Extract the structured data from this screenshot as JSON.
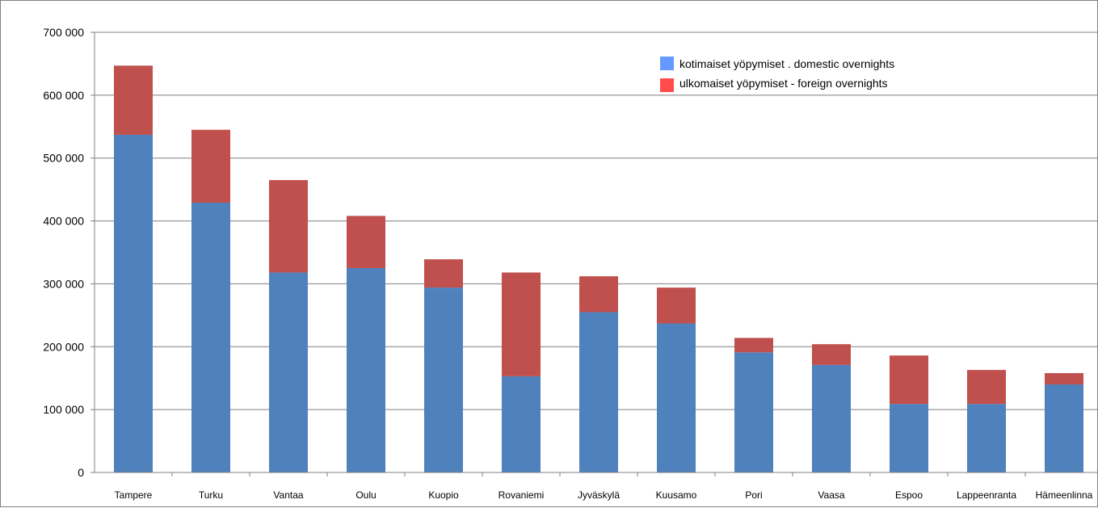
{
  "chart_data": {
    "type": "bar",
    "stacked": true,
    "categories": [
      "Tampere",
      "Turku",
      "Vantaa",
      "Oulu",
      "Kuopio",
      "Rovaniemi",
      "Jyväskylä",
      "Kuusamo",
      "Pori",
      "Vaasa",
      "Espoo",
      "Lappeenranta",
      "Hämeenlinna"
    ],
    "series": [
      {
        "name": "kotimaiset yöpymiset . domestic overnights",
        "color": "#4f81bd",
        "legend_color": "#6699ff",
        "values": [
          537000,
          429000,
          318000,
          325000,
          294000,
          153000,
          255000,
          237000,
          191000,
          171000,
          109000,
          109000,
          140000
        ]
      },
      {
        "name": "ulkomaiset yöpymiset - foreign overnights",
        "color": "#c0504d",
        "legend_color": "#ff4d4d",
        "values": [
          110000,
          116000,
          147000,
          83000,
          45000,
          165000,
          57000,
          57000,
          23000,
          33000,
          77000,
          54000,
          18000
        ]
      }
    ],
    "yticks": [
      "0",
      "100 000",
      "200 000",
      "300 000",
      "400 000",
      "500 000",
      "600 000",
      "700 000"
    ],
    "ylim": [
      0,
      700000
    ],
    "grid": true,
    "legend_position": "top-right",
    "title": "",
    "xlabel": "",
    "ylabel": ""
  }
}
